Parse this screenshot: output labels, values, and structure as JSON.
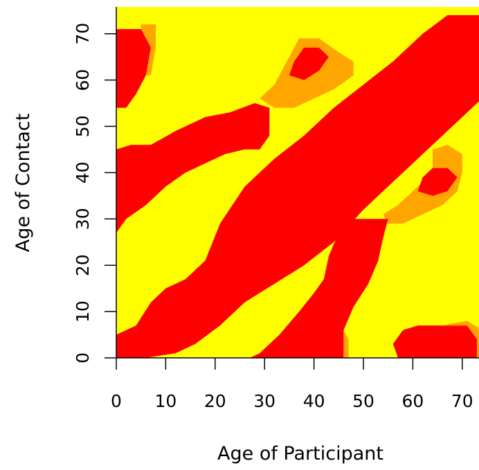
{
  "chart_data": {
    "type": "heatmap",
    "title": "",
    "xlabel": "Age of Participant",
    "ylabel": "Age of Contact",
    "xlim": [
      0,
      74
    ],
    "ylim": [
      0,
      74
    ],
    "x_ticks": [
      0,
      10,
      20,
      30,
      40,
      50,
      60,
      70
    ],
    "y_ticks": [
      0,
      10,
      20,
      30,
      40,
      50,
      60,
      70
    ],
    "x_tick_labels": [
      "0",
      "10",
      "20",
      "30",
      "40",
      "50",
      "60",
      "70"
    ],
    "y_tick_labels": [
      "0",
      "10",
      "20",
      "30",
      "40",
      "50",
      "60",
      "70"
    ],
    "levels": [
      {
        "level": 0,
        "color": "#ffff00"
      },
      {
        "level": 1,
        "color": "#ffa500"
      },
      {
        "level": 2,
        "color": "#ff0000"
      }
    ],
    "background_color": "#ffff00",
    "regions": [
      {
        "level": 2,
        "polygon": [
          [
            0,
            0
          ],
          [
            0,
            5
          ],
          [
            4,
            7
          ],
          [
            7,
            12
          ],
          [
            10,
            15
          ],
          [
            14,
            17
          ],
          [
            18,
            21
          ],
          [
            21,
            29
          ],
          [
            26,
            37
          ],
          [
            32,
            43
          ],
          [
            38,
            48
          ],
          [
            44,
            54
          ],
          [
            50,
            59
          ],
          [
            56,
            64
          ],
          [
            62,
            70
          ],
          [
            67,
            74
          ],
          [
            74,
            74
          ],
          [
            74,
            56
          ],
          [
            68,
            50
          ],
          [
            62,
            44
          ],
          [
            56,
            38
          ],
          [
            50,
            32
          ],
          [
            44,
            25
          ],
          [
            38,
            20
          ],
          [
            32,
            16
          ],
          [
            26,
            12
          ],
          [
            21,
            7
          ],
          [
            16,
            3
          ],
          [
            12,
            1
          ],
          [
            6,
            0
          ]
        ]
      },
      {
        "level": 1,
        "polygon": [
          [
            29,
            56
          ],
          [
            32,
            59
          ],
          [
            34,
            63
          ],
          [
            37,
            69
          ],
          [
            41,
            69
          ],
          [
            45,
            66
          ],
          [
            48,
            64
          ],
          [
            48,
            61
          ],
          [
            44,
            58
          ],
          [
            40,
            56
          ],
          [
            36,
            54
          ],
          [
            32,
            54
          ]
        ]
      },
      {
        "level": 2,
        "polygon": [
          [
            35,
            61
          ],
          [
            36,
            64
          ],
          [
            38,
            67
          ],
          [
            41,
            67
          ],
          [
            43,
            65
          ],
          [
            41,
            62
          ],
          [
            38,
            60
          ]
        ]
      },
      {
        "level": 1,
        "polygon": [
          [
            54,
            31
          ],
          [
            57,
            33
          ],
          [
            60,
            36
          ],
          [
            62,
            38
          ],
          [
            64,
            41
          ],
          [
            64,
            45
          ],
          [
            67,
            46
          ],
          [
            70,
            44
          ],
          [
            70,
            40
          ],
          [
            69,
            36
          ],
          [
            66,
            33
          ],
          [
            62,
            31
          ],
          [
            58,
            29
          ],
          [
            55,
            29
          ]
        ]
      },
      {
        "level": 2,
        "polygon": [
          [
            61,
            36
          ],
          [
            62,
            39
          ],
          [
            64,
            41
          ],
          [
            67,
            41
          ],
          [
            69,
            39
          ],
          [
            67,
            36
          ],
          [
            64,
            35
          ]
        ]
      },
      {
        "level": 2,
        "polygon": [
          [
            0,
            54
          ],
          [
            0,
            71
          ],
          [
            5,
            71
          ],
          [
            7,
            67
          ],
          [
            6,
            61
          ],
          [
            4,
            57
          ],
          [
            2,
            54
          ]
        ]
      },
      {
        "level": 1,
        "polygon": [
          [
            5,
            72
          ],
          [
            8,
            72
          ],
          [
            8,
            67
          ],
          [
            7,
            61
          ],
          [
            6,
            61
          ],
          [
            7,
            67
          ],
          [
            5,
            71
          ]
        ]
      },
      {
        "level": 2,
        "polygon": [
          [
            0,
            27
          ],
          [
            0,
            45
          ],
          [
            3,
            46
          ],
          [
            7,
            46
          ],
          [
            12,
            49
          ],
          [
            18,
            52
          ],
          [
            23,
            53
          ],
          [
            28,
            55
          ],
          [
            31,
            54
          ],
          [
            31,
            48
          ],
          [
            29,
            45
          ],
          [
            26,
            45
          ],
          [
            22,
            44
          ],
          [
            18,
            42
          ],
          [
            14,
            40
          ],
          [
            10,
            37
          ],
          [
            6,
            33
          ],
          [
            2,
            30
          ]
        ]
      },
      {
        "level": 2,
        "polygon": [
          [
            27,
            0
          ],
          [
            29,
            1
          ],
          [
            33,
            5
          ],
          [
            37,
            10
          ],
          [
            40,
            14
          ],
          [
            42,
            17
          ],
          [
            43,
            22
          ],
          [
            45,
            27
          ],
          [
            48,
            30
          ],
          [
            52,
            30
          ],
          [
            55,
            30
          ],
          [
            54,
            26
          ],
          [
            53,
            21
          ],
          [
            51,
            16
          ],
          [
            48,
            11
          ],
          [
            46,
            6
          ],
          [
            46,
            0
          ]
        ]
      },
      {
        "level": 1,
        "polygon": [
          [
            46,
            0
          ],
          [
            46,
            6
          ],
          [
            47,
            4
          ],
          [
            47,
            0
          ]
        ]
      },
      {
        "level": 2,
        "polygon": [
          [
            57,
            0
          ],
          [
            56,
            3
          ],
          [
            58,
            6
          ],
          [
            61,
            7
          ],
          [
            66,
            7
          ],
          [
            71,
            7
          ],
          [
            73,
            4
          ],
          [
            73,
            0
          ]
        ]
      },
      {
        "level": 1,
        "polygon": [
          [
            66,
            7
          ],
          [
            71,
            8
          ],
          [
            74,
            6
          ],
          [
            74,
            0
          ],
          [
            73,
            0
          ],
          [
            73,
            4
          ],
          [
            71,
            7
          ]
        ]
      }
    ]
  }
}
